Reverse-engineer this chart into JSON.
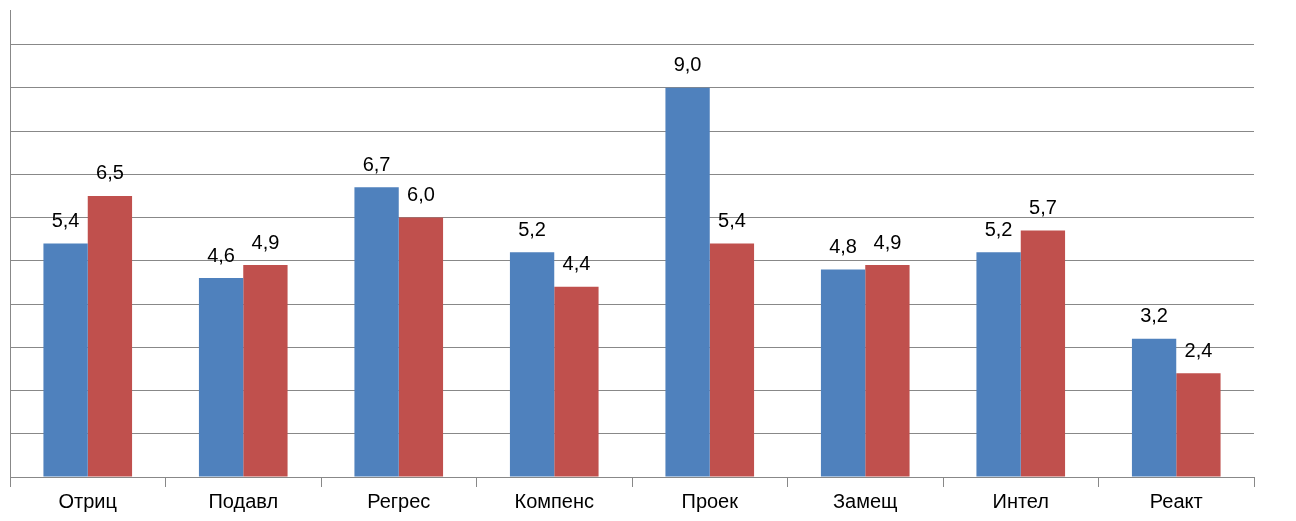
{
  "chart_data": {
    "type": "bar",
    "categories": [
      "Отриц",
      "Подавл",
      "Регрес",
      "Компенс",
      "Проек",
      "Замещ",
      "Интел",
      "Реакт"
    ],
    "series": [
      {
        "color": "#4f81bd",
        "values": [
          5.4,
          4.6,
          6.7,
          5.2,
          9.0,
          4.8,
          5.2,
          3.2
        ],
        "value_labels": [
          "5,4",
          "4,6",
          "6,7",
          "5,2",
          "9,0",
          "4,8",
          "5,2",
          "3,2"
        ]
      },
      {
        "color": "#c0504d",
        "values": [
          6.5,
          4.9,
          6.0,
          4.4,
          5.4,
          4.9,
          5.7,
          2.4
        ],
        "value_labels": [
          "6,5",
          "4,9",
          "6,0",
          "4,4",
          "5,4",
          "4,9",
          "5,7",
          "2,4"
        ]
      }
    ],
    "ylim": [
      0,
      10.8
    ],
    "yticks": [
      {
        "value": 0,
        "label": null
      },
      {
        "value": 1,
        "label": null
      },
      {
        "value": 2,
        "label": null
      },
      {
        "value": 3,
        "label": null
      },
      {
        "value": 4,
        "label": null
      },
      {
        "value": 5,
        "label": null
      },
      {
        "value": 6,
        "label": null
      },
      {
        "value": 7,
        "label": null
      },
      {
        "value": 8,
        "label": null
      },
      {
        "value": 9,
        "label": null
      },
      {
        "value": 10,
        "label": null
      }
    ],
    "grid": "y",
    "tick_labels": "x",
    "legend": false
  }
}
